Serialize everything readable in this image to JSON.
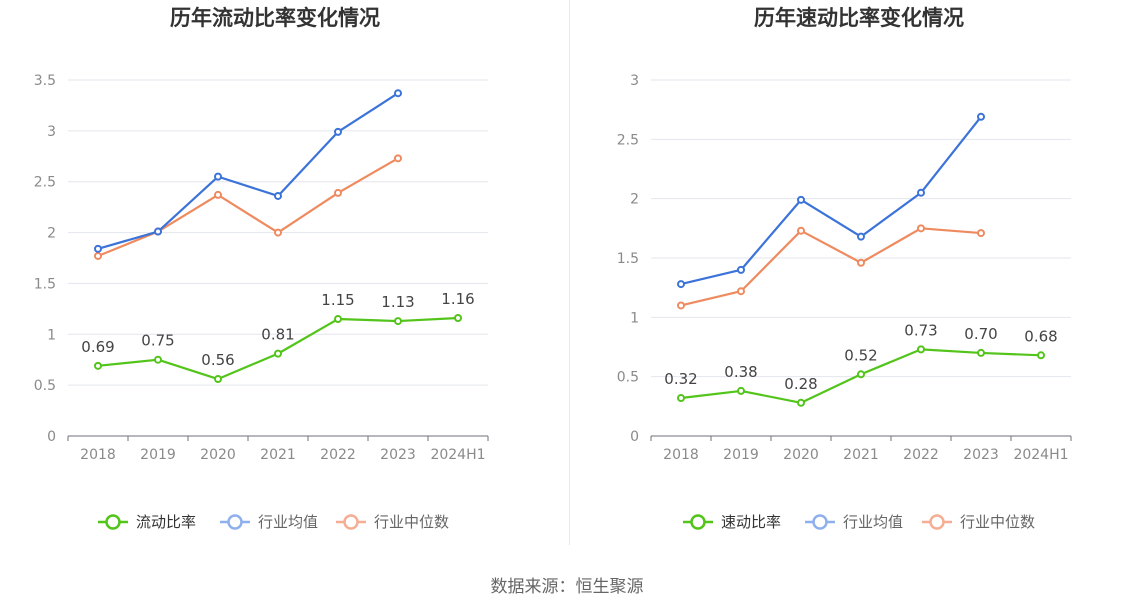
{
  "colors": {
    "primary": "#52c41a",
    "average": "#3b73d9",
    "median": "#ef8a5f",
    "legend_average": "#8fb0ee",
    "legend_median": "#f5ae94"
  },
  "source": "数据来源：恒生聚源",
  "chart_data": [
    {
      "type": "line",
      "title": "历年流动比率变化情况",
      "categories": [
        "2018",
        "2019",
        "2020",
        "2021",
        "2022",
        "2023",
        "2024H1"
      ],
      "ylim": [
        0,
        3.5
      ],
      "yticks": [
        "0",
        "0.5",
        "1",
        "1.5",
        "2",
        "2.5",
        "3",
        "3.5"
      ],
      "grid": true,
      "legend_position": "bottom",
      "series": [
        {
          "name": "流动比率",
          "values": [
            0.69,
            0.75,
            0.56,
            0.81,
            1.15,
            1.13,
            1.16
          ],
          "labels": [
            "0.69",
            "0.75",
            "0.56",
            "0.81",
            "1.15",
            "1.13",
            "1.16"
          ]
        },
        {
          "name": "行业均值",
          "values": [
            1.84,
            2.01,
            2.55,
            2.36,
            2.99,
            3.37,
            null
          ]
        },
        {
          "name": "行业中位数",
          "values": [
            1.77,
            2.01,
            2.37,
            2.0,
            2.39,
            2.73,
            null
          ]
        }
      ]
    },
    {
      "type": "line",
      "title": "历年速动比率变化情况",
      "categories": [
        "2018",
        "2019",
        "2020",
        "2021",
        "2022",
        "2023",
        "2024H1"
      ],
      "ylim": [
        0,
        3
      ],
      "yticks": [
        "0",
        "0.5",
        "1",
        "1.5",
        "2",
        "2.5",
        "3"
      ],
      "grid": true,
      "legend_position": "bottom",
      "series": [
        {
          "name": "速动比率",
          "values": [
            0.32,
            0.38,
            0.28,
            0.52,
            0.73,
            0.7,
            0.68
          ],
          "labels": [
            "0.32",
            "0.38",
            "0.28",
            "0.52",
            "0.73",
            "0.70",
            "0.68"
          ]
        },
        {
          "name": "行业均值",
          "values": [
            1.28,
            1.4,
            1.99,
            1.68,
            2.05,
            2.69,
            null
          ]
        },
        {
          "name": "行业中位数",
          "values": [
            1.1,
            1.22,
            1.73,
            1.46,
            1.75,
            1.71,
            null
          ]
        }
      ]
    }
  ]
}
